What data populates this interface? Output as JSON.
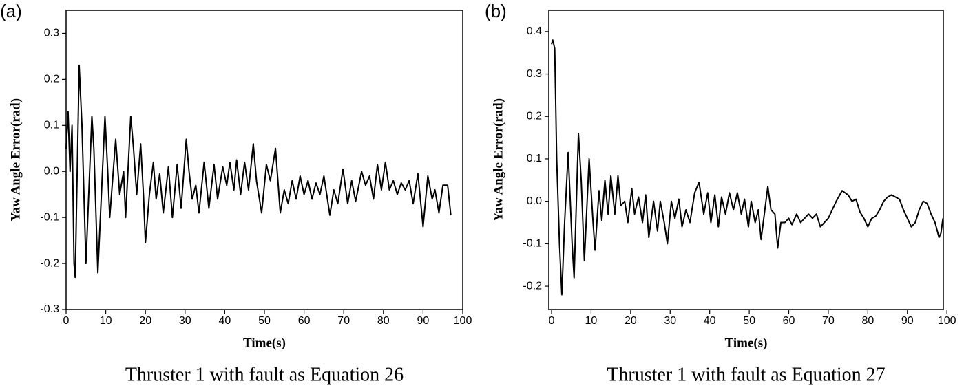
{
  "chart_data": [
    {
      "type": "line",
      "panel_label": "(a)",
      "xlabel": "Time(s)",
      "ylabel": "Yaw Angle Error(rad)",
      "caption": "Thruster 1 with fault as Equation 26",
      "xlim": [
        0,
        100
      ],
      "ylim": [
        -0.3,
        0.35
      ],
      "xticks": [
        0,
        10,
        20,
        30,
        40,
        50,
        60,
        70,
        80,
        90,
        100
      ],
      "yticks": [
        -0.3,
        -0.2,
        -0.1,
        {
          "value": 0,
          "label": "0.0"
        },
        0.1,
        0.2,
        0.3
      ],
      "x": [
        0,
        0.5,
        1,
        1.5,
        2,
        2.3,
        3.3,
        4,
        5,
        6.5,
        7,
        8,
        9.8,
        10.5,
        11,
        12.5,
        13.5,
        14.5,
        15,
        16.3,
        17,
        17.8,
        18.8,
        19.5,
        20,
        21,
        22,
        22.7,
        23.6,
        24.5,
        25.8,
        26.8,
        28,
        29,
        30.3,
        31,
        31.8,
        32.7,
        33.5,
        34.8,
        36,
        37.3,
        38.2,
        39.5,
        40.5,
        41.3,
        42.3,
        43,
        44,
        45,
        46,
        47.2,
        48,
        49.3,
        50.5,
        51.5,
        52.8,
        54,
        55,
        56,
        57,
        58,
        59,
        60,
        61,
        62,
        63,
        64,
        65,
        66.5,
        67.5,
        68.5,
        69.8,
        71,
        72,
        73,
        74.5,
        75.5,
        76.5,
        77.5,
        78.5,
        79.5,
        80.5,
        81.5,
        82.5,
        83.5,
        84.5,
        85.5,
        86.5,
        87.5,
        88.7,
        90,
        91.2,
        92.3,
        93,
        94,
        95,
        96.2,
        97
      ],
      "series": [
        {
          "color": "#000000",
          "values": [
            0.05,
            0.13,
            0.0,
            0.1,
            -0.2,
            -0.23,
            0.23,
            0.1,
            -0.2,
            0.12,
            0.05,
            -0.22,
            0.12,
            0.0,
            -0.1,
            0.07,
            -0.05,
            0.0,
            -0.1,
            0.12,
            0.05,
            -0.05,
            0.06,
            -0.05,
            -0.155,
            -0.05,
            0.02,
            -0.06,
            -0.005,
            -0.09,
            0.01,
            -0.1,
            0.015,
            -0.08,
            0.07,
            0.0,
            -0.06,
            -0.03,
            -0.09,
            0.02,
            -0.08,
            0.015,
            -0.06,
            0.01,
            -0.03,
            0.02,
            -0.04,
            0.025,
            -0.05,
            0.02,
            -0.04,
            0.06,
            -0.02,
            -0.09,
            0.015,
            -0.02,
            0.05,
            -0.09,
            -0.04,
            -0.07,
            -0.02,
            -0.06,
            -0.01,
            -0.05,
            -0.02,
            -0.06,
            -0.025,
            -0.05,
            -0.01,
            -0.095,
            -0.04,
            -0.07,
            0.005,
            -0.07,
            -0.02,
            -0.065,
            0.0,
            -0.03,
            -0.01,
            -0.06,
            0.015,
            -0.04,
            0.02,
            -0.04,
            -0.02,
            -0.05,
            -0.025,
            -0.04,
            -0.02,
            -0.07,
            -0.005,
            -0.12,
            -0.01,
            -0.06,
            -0.04,
            -0.09,
            -0.03,
            -0.03,
            -0.095
          ]
        }
      ]
    },
    {
      "type": "line",
      "panel_label": "(b)",
      "xlabel": "Time(s)",
      "ylabel": "Yaw Angle Error(rad)",
      "caption": "Thruster 1 with fault as Equation 27",
      "xlim": [
        -0.7,
        99.1
      ],
      "ylim": [
        -0.255,
        0.45
      ],
      "xticks": [
        0,
        10,
        20,
        30,
        40,
        50,
        60,
        70,
        80,
        90,
        100
      ],
      "yticks": [
        -0.2,
        -0.1,
        {
          "value": 0,
          "label": "0.0"
        },
        0.1,
        0.2,
        0.3,
        0.4
      ],
      "x": [
        0,
        0.3,
        0.8,
        1.3,
        2,
        2.6,
        3.3,
        4.2,
        5.2,
        5.7,
        6.8,
        7.5,
        8.3,
        9.5,
        10.5,
        11,
        12,
        12.7,
        13.5,
        14.3,
        15,
        16,
        16.8,
        17.5,
        18.5,
        19.3,
        20.3,
        21,
        22,
        23,
        23.8,
        24.6,
        25.8,
        26.8,
        27.5,
        28.5,
        29.3,
        30.3,
        31.2,
        32.2,
        33,
        34,
        35,
        36.2,
        37.3,
        38.5,
        39.5,
        40.3,
        41.3,
        42.2,
        43,
        44,
        45,
        46,
        47,
        48,
        48.8,
        49.8,
        50.5,
        51.5,
        52.3,
        53,
        54.7,
        55.5,
        56.5,
        57.2,
        58,
        59,
        60,
        60.8,
        62,
        63,
        64,
        65,
        66,
        67,
        68,
        69,
        70,
        71,
        72,
        73.5,
        75,
        76,
        77,
        78,
        79,
        80,
        81,
        82,
        83,
        84,
        85,
        86,
        87,
        88,
        89,
        90,
        91,
        92,
        93,
        94,
        95,
        96,
        97,
        98,
        98.5,
        99
      ],
      "series": [
        {
          "color": "#000000",
          "values": [
            0.37,
            0.38,
            0.36,
            0.1,
            -0.1,
            -0.22,
            -0.05,
            0.115,
            -0.1,
            -0.18,
            0.16,
            0.05,
            -0.14,
            0.1,
            -0.05,
            -0.115,
            0.025,
            -0.045,
            0.05,
            -0.03,
            0.06,
            -0.03,
            0.06,
            -0.01,
            0.0,
            -0.05,
            0.03,
            -0.03,
            0.01,
            -0.05,
            0.015,
            -0.085,
            0.0,
            -0.07,
            0.0,
            -0.05,
            -0.1,
            0.0,
            -0.04,
            0.005,
            -0.06,
            -0.02,
            -0.05,
            0.02,
            0.045,
            -0.03,
            0.02,
            -0.05,
            0.015,
            -0.06,
            0.01,
            -0.03,
            0.02,
            -0.02,
            0.02,
            -0.03,
            0.005,
            -0.06,
            0.0,
            -0.05,
            -0.02,
            -0.09,
            0.035,
            -0.02,
            -0.03,
            -0.11,
            -0.05,
            -0.05,
            -0.04,
            -0.055,
            -0.03,
            -0.05,
            -0.04,
            -0.03,
            -0.04,
            -0.03,
            -0.06,
            -0.05,
            -0.04,
            -0.02,
            0.0,
            0.025,
            0.015,
            0.0,
            0.005,
            -0.025,
            -0.04,
            -0.06,
            -0.04,
            -0.035,
            -0.02,
            0.0,
            0.01,
            0.015,
            0.01,
            0.005,
            -0.02,
            -0.04,
            -0.06,
            -0.05,
            -0.02,
            0.0,
            -0.005,
            -0.03,
            -0.05,
            -0.085,
            -0.075,
            -0.04
          ]
        }
      ]
    }
  ]
}
